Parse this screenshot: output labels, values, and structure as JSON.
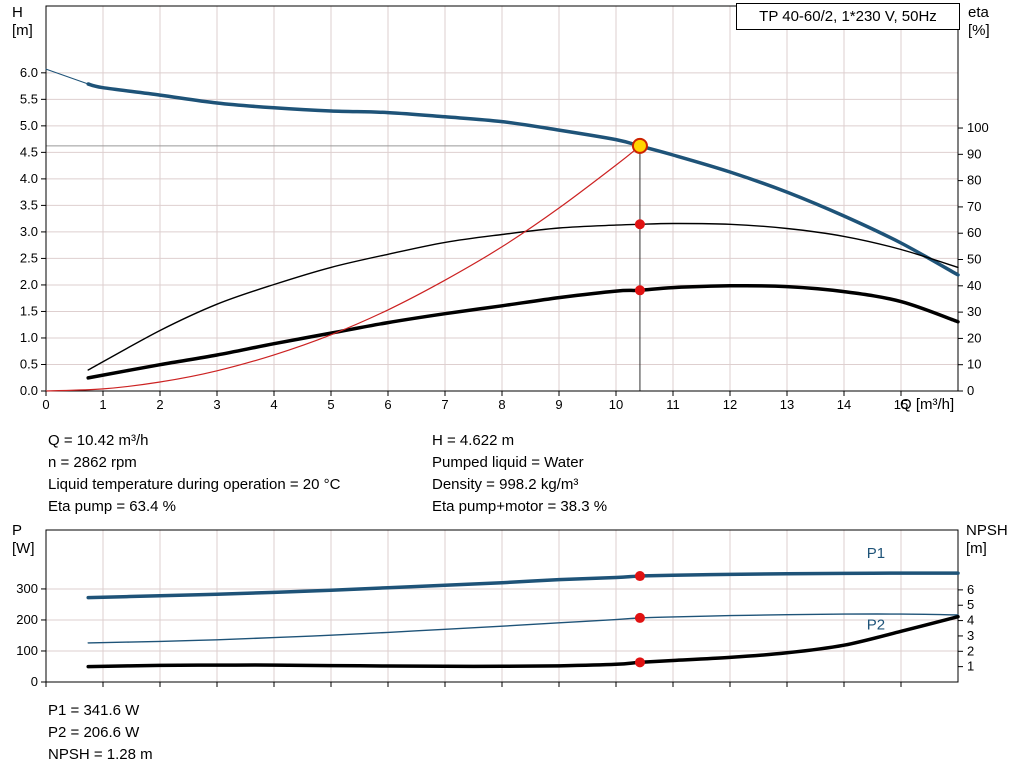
{
  "colors": {
    "blue": "#1e5378",
    "black": "#000000",
    "red_line": "#cc2222",
    "dot_red": "#e01212",
    "duty_fill": "#ffd400",
    "duty_stroke": "#cc2200",
    "grid": "#decfcf",
    "frame": "#000000",
    "guide_v": "#333333",
    "guide_h": "#999999"
  },
  "chart_data": [
    {
      "type": "line",
      "title": "TP 40-60/2, 1*230 V, 50Hz",
      "x_axis": {
        "label": "Q [m³/h]",
        "min": 0,
        "max": 16,
        "ticks": [
          0,
          1,
          2,
          3,
          4,
          5,
          6,
          7,
          8,
          9,
          10,
          11,
          12,
          13,
          14,
          15
        ],
        "show_labels": true
      },
      "y_left": {
        "name": "H",
        "unit": "[m]",
        "min": 0,
        "max": 7.26,
        "decimals": 1,
        "ticks": [
          0,
          0.5,
          1,
          1.5,
          2,
          2.5,
          3,
          3.5,
          4,
          4.5,
          5,
          5.5,
          6
        ]
      },
      "y_right": {
        "name": "eta",
        "unit": "[%]",
        "min": 0,
        "max": 146.4,
        "decimals": 0,
        "ticks": [
          0,
          10,
          20,
          30,
          40,
          50,
          60,
          70,
          80,
          90,
          100
        ]
      },
      "series": [
        {
          "name": "pump-curve-lead",
          "axis": "left",
          "color": "#1e5378",
          "width": 1,
          "points": [
            [
              0,
              6.07
            ],
            [
              0.74,
              5.79
            ]
          ]
        },
        {
          "name": "pump-curve",
          "axis": "left",
          "color": "#1e5378",
          "width": 3.5,
          "points": [
            [
              0.74,
              5.79
            ],
            [
              1,
              5.72
            ],
            [
              2,
              5.58
            ],
            [
              3,
              5.43
            ],
            [
              4,
              5.34
            ],
            [
              5,
              5.28
            ],
            [
              6,
              5.25
            ],
            [
              7,
              5.17
            ],
            [
              8,
              5.08
            ],
            [
              9,
              4.92
            ],
            [
              10,
              4.74
            ],
            [
              10.42,
              4.62
            ],
            [
              11,
              4.45
            ],
            [
              12,
              4.13
            ],
            [
              13,
              3.75
            ],
            [
              14,
              3.3
            ],
            [
              15,
              2.79
            ],
            [
              16,
              2.19
            ]
          ]
        },
        {
          "name": "eta-pump-curve",
          "axis": "right",
          "color": "#000000",
          "width": 1.4,
          "points": [
            [
              0.74,
              8
            ],
            [
              2,
              23
            ],
            [
              3,
              33
            ],
            [
              4,
              40.5
            ],
            [
              5,
              47
            ],
            [
              6,
              52
            ],
            [
              7,
              56.5
            ],
            [
              8,
              59.5
            ],
            [
              9,
              62
            ],
            [
              10,
              63.1
            ],
            [
              10.42,
              63.4
            ],
            [
              11,
              63.7
            ],
            [
              12,
              63.4
            ],
            [
              13,
              61.8
            ],
            [
              14,
              58.8
            ],
            [
              15,
              53.8
            ],
            [
              16,
              47
            ]
          ]
        },
        {
          "name": "eta-pump-motor-curve",
          "axis": "right",
          "color": "#000000",
          "width": 3.5,
          "points": [
            [
              0.74,
              5
            ],
            [
              2,
              10
            ],
            [
              3,
              13.7
            ],
            [
              4,
              18
            ],
            [
              5,
              22
            ],
            [
              6,
              26
            ],
            [
              7,
              29.4
            ],
            [
              8,
              32.4
            ],
            [
              9,
              35.5
            ],
            [
              10,
              38
            ],
            [
              10.42,
              38.3
            ],
            [
              11,
              39.3
            ],
            [
              12,
              40
            ],
            [
              13,
              39.7
            ],
            [
              14,
              37.8
            ],
            [
              15,
              34
            ],
            [
              16,
              26.3
            ]
          ]
        },
        {
          "name": "system-curve",
          "axis": "left",
          "color": "#cc2222",
          "width": 1.2,
          "points": [
            [
              0,
              0
            ],
            [
              1,
              0.04
            ],
            [
              2,
              0.17
            ],
            [
              3,
              0.38
            ],
            [
              4,
              0.68
            ],
            [
              5,
              1.06
            ],
            [
              6,
              1.53
            ],
            [
              7,
              2.09
            ],
            [
              8,
              2.72
            ],
            [
              9,
              3.45
            ],
            [
              10,
              4.26
            ],
            [
              10.42,
              4.62
            ]
          ]
        }
      ],
      "guides": [
        {
          "type": "v",
          "x": 10.42,
          "y1": 0,
          "y2": 4.622,
          "color": "#333333",
          "width": 1
        },
        {
          "type": "h",
          "y": 4.622,
          "x1": 0,
          "x2": 10.42,
          "color": "#999999",
          "width": 1
        }
      ],
      "markers": [
        {
          "name": "duty-point",
          "x": 10.42,
          "y": 4.622,
          "axis": "left",
          "r": 7,
          "fill": "#ffd400",
          "stroke": "#cc2200",
          "stroke_width": 2
        },
        {
          "name": "eta-pump-point",
          "x": 10.42,
          "y": 63.4,
          "axis": "right",
          "r": 5,
          "fill": "#e01212"
        },
        {
          "name": "eta-pump-motor-point",
          "x": 10.42,
          "y": 38.3,
          "axis": "right",
          "r": 5,
          "fill": "#e01212"
        }
      ]
    },
    {
      "type": "line",
      "title": "",
      "x_axis": {
        "label": "",
        "min": 0,
        "max": 16,
        "ticks": [
          0,
          1,
          2,
          3,
          4,
          5,
          6,
          7,
          8,
          9,
          10,
          11,
          12,
          13,
          14,
          15
        ],
        "show_labels": false
      },
      "y_left": {
        "name": "P",
        "unit": "[W]",
        "min": 0,
        "max": 490,
        "decimals": 0,
        "ticks": [
          0,
          100,
          200,
          300
        ]
      },
      "y_right": {
        "name": "NPSH",
        "unit": "[m]",
        "min": 0,
        "max": 9.9,
        "decimals": 0,
        "ticks": [
          1,
          2,
          3,
          4,
          5,
          6
        ]
      },
      "series": [
        {
          "name": "p1-curve",
          "axis": "left",
          "color": "#1e5378",
          "width": 3.5,
          "points": [
            [
              0.74,
              272
            ],
            [
              2,
              278
            ],
            [
              3,
              283
            ],
            [
              4,
              289
            ],
            [
              5,
              296
            ],
            [
              6,
              304
            ],
            [
              7,
              312
            ],
            [
              8,
              320
            ],
            [
              9,
              330
            ],
            [
              10,
              337
            ],
            [
              10.42,
              341.6
            ],
            [
              11,
              344
            ],
            [
              12,
              347
            ],
            [
              13,
              349
            ],
            [
              14,
              350
            ],
            [
              15,
              351
            ],
            [
              16,
              351
            ]
          ]
        },
        {
          "name": "p2-curve",
          "axis": "left",
          "color": "#1e5378",
          "width": 1.4,
          "points": [
            [
              0.74,
              126
            ],
            [
              2,
              131
            ],
            [
              3,
              136
            ],
            [
              4,
              143
            ],
            [
              5,
              151
            ],
            [
              6,
              160
            ],
            [
              7,
              170
            ],
            [
              8,
              180
            ],
            [
              9,
              191
            ],
            [
              10,
              201
            ],
            [
              10.42,
              206.6
            ],
            [
              11,
              210
            ],
            [
              12,
              214
            ],
            [
              13,
              217
            ],
            [
              14,
              219
            ],
            [
              15,
              219
            ],
            [
              16,
              216
            ]
          ]
        },
        {
          "name": "npsh-curve",
          "axis": "right",
          "color": "#000000",
          "width": 3.5,
          "points": [
            [
              0.74,
              1.0
            ],
            [
              2,
              1.08
            ],
            [
              3,
              1.1
            ],
            [
              4,
              1.1
            ],
            [
              5,
              1.07
            ],
            [
              6,
              1.04
            ],
            [
              7,
              1.02
            ],
            [
              8,
              1.02
            ],
            [
              9,
              1.05
            ],
            [
              10,
              1.15
            ],
            [
              10.42,
              1.28
            ],
            [
              11,
              1.4
            ],
            [
              12,
              1.6
            ],
            [
              13,
              1.9
            ],
            [
              14,
              2.4
            ],
            [
              15,
              3.3
            ],
            [
              16,
              4.25
            ]
          ]
        }
      ],
      "labels": [
        {
          "text": "P1",
          "x": 14.4,
          "y": 400,
          "axis": "left",
          "color": "#1e5378"
        },
        {
          "text": "P2",
          "x": 14.4,
          "y": 170,
          "axis": "left",
          "color": "#1e5378"
        }
      ],
      "markers": [
        {
          "name": "p1-point",
          "x": 10.42,
          "y": 341.6,
          "axis": "left",
          "r": 5,
          "fill": "#e01212"
        },
        {
          "name": "p2-point",
          "x": 10.42,
          "y": 206.6,
          "axis": "left",
          "r": 5,
          "fill": "#e01212"
        },
        {
          "name": "npsh-point",
          "x": 10.42,
          "y": 1.28,
          "axis": "right",
          "r": 5,
          "fill": "#e01212"
        }
      ]
    }
  ],
  "info_block": {
    "left": [
      "Q = 10.42 m³/h",
      "n = 2862 rpm",
      "Liquid temperature during operation = 20 °C",
      "Eta pump = 63.4 %"
    ],
    "right": [
      "H = 4.622 m",
      "Pumped liquid = Water",
      "Density = 998.2 kg/m³",
      "Eta pump+motor = 38.3 %"
    ]
  },
  "results_block": [
    "P1 = 341.6 W",
    "P2 = 206.6 W",
    "NPSH = 1.28 m"
  ]
}
